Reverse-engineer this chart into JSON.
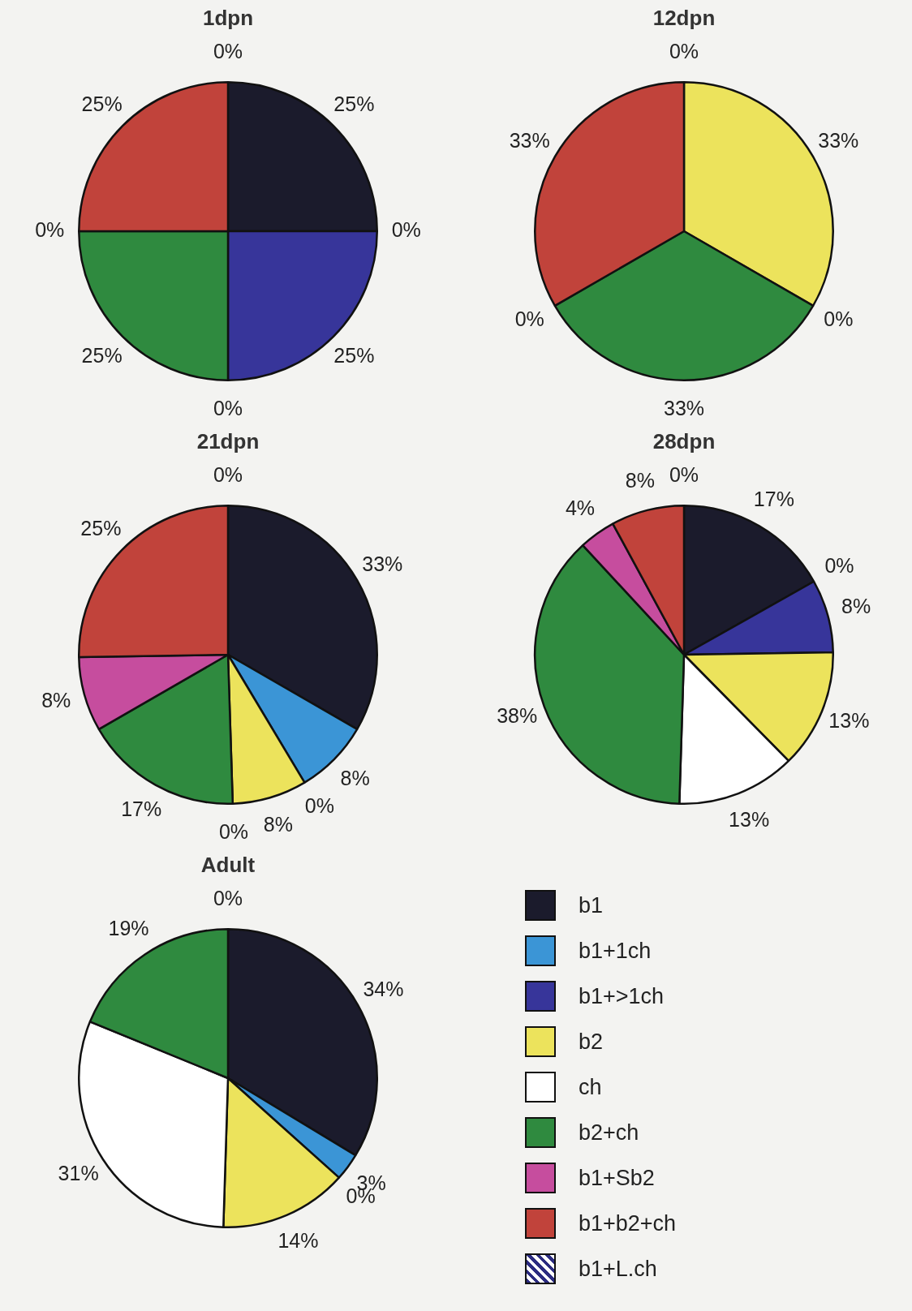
{
  "chart_data": [
    {
      "type": "pie",
      "title": "1dpn",
      "colors": [
        "#1b1b2c",
        "#3b95d6",
        "#37359a",
        "#ece35c",
        "#ffffff",
        "#2f8a3f",
        "#c64d9e",
        "#c1433b",
        "#2b2b80"
      ],
      "values": [
        25,
        0,
        25,
        0,
        0,
        25,
        0,
        25,
        0
      ],
      "value_labels": [
        "25%",
        "0%",
        "25%",
        "0%",
        null,
        "25%",
        "0%",
        "25%",
        "0%"
      ],
      "legend": false
    },
    {
      "type": "pie",
      "title": "12dpn",
      "colors": [
        "#1b1b2c",
        "#3b95d6",
        "#37359a",
        "#ece35c",
        "#ffffff",
        "#2f8a3f",
        "#c64d9e",
        "#c1433b",
        "#2b2b80"
      ],
      "values": [
        0,
        0,
        0,
        33,
        0,
        33,
        0,
        33,
        0
      ],
      "value_labels": [
        "0%",
        null,
        null,
        "33%",
        "0%",
        "33%",
        "0%",
        "33%",
        null
      ],
      "legend": false
    },
    {
      "type": "pie",
      "title": "21dpn",
      "colors": [
        "#1b1b2c",
        "#3b95d6",
        "#37359a",
        "#ece35c",
        "#ffffff",
        "#2f8a3f",
        "#c64d9e",
        "#c1433b",
        "#2b2b80"
      ],
      "values": [
        33,
        8,
        0,
        8,
        0,
        17,
        8,
        25,
        0
      ],
      "value_labels": [
        "33%",
        "8%",
        "0%",
        "8%",
        "0%",
        "17%",
        "8%",
        "25%",
        "0%"
      ],
      "legend": false
    },
    {
      "type": "pie",
      "title": "28dpn",
      "colors": [
        "#1b1b2c",
        "#3b95d6",
        "#37359a",
        "#ece35c",
        "#ffffff",
        "#2f8a3f",
        "#c64d9e",
        "#c1433b",
        "#2b2b80"
      ],
      "values": [
        17,
        0,
        8,
        13,
        13,
        38,
        4,
        8,
        0
      ],
      "value_labels": [
        "17%",
        "0%",
        "8%",
        "13%",
        "13%",
        "38%",
        "4%",
        "8%",
        "0%"
      ],
      "legend": false
    },
    {
      "type": "pie",
      "title": "Adult",
      "categories": [
        "b1",
        "b1+1ch",
        "b1+>1ch",
        "b2",
        "ch",
        "b2+ch",
        "b1+Sb2",
        "b1+b2+ch",
        "b1+L.ch"
      ],
      "colors": [
        "#1b1b2c",
        "#3b95d6",
        "#37359a",
        "#ece35c",
        "#ffffff",
        "#2f8a3f",
        "#c64d9e",
        "#c1433b",
        "#2b2b80"
      ],
      "values": [
        34,
        3,
        0,
        14,
        31,
        19,
        0,
        0,
        0
      ],
      "value_labels": [
        "34%",
        "3%",
        "0%",
        "14%",
        "31%",
        "19%",
        null,
        null,
        "0%"
      ],
      "legend": "right"
    }
  ]
}
